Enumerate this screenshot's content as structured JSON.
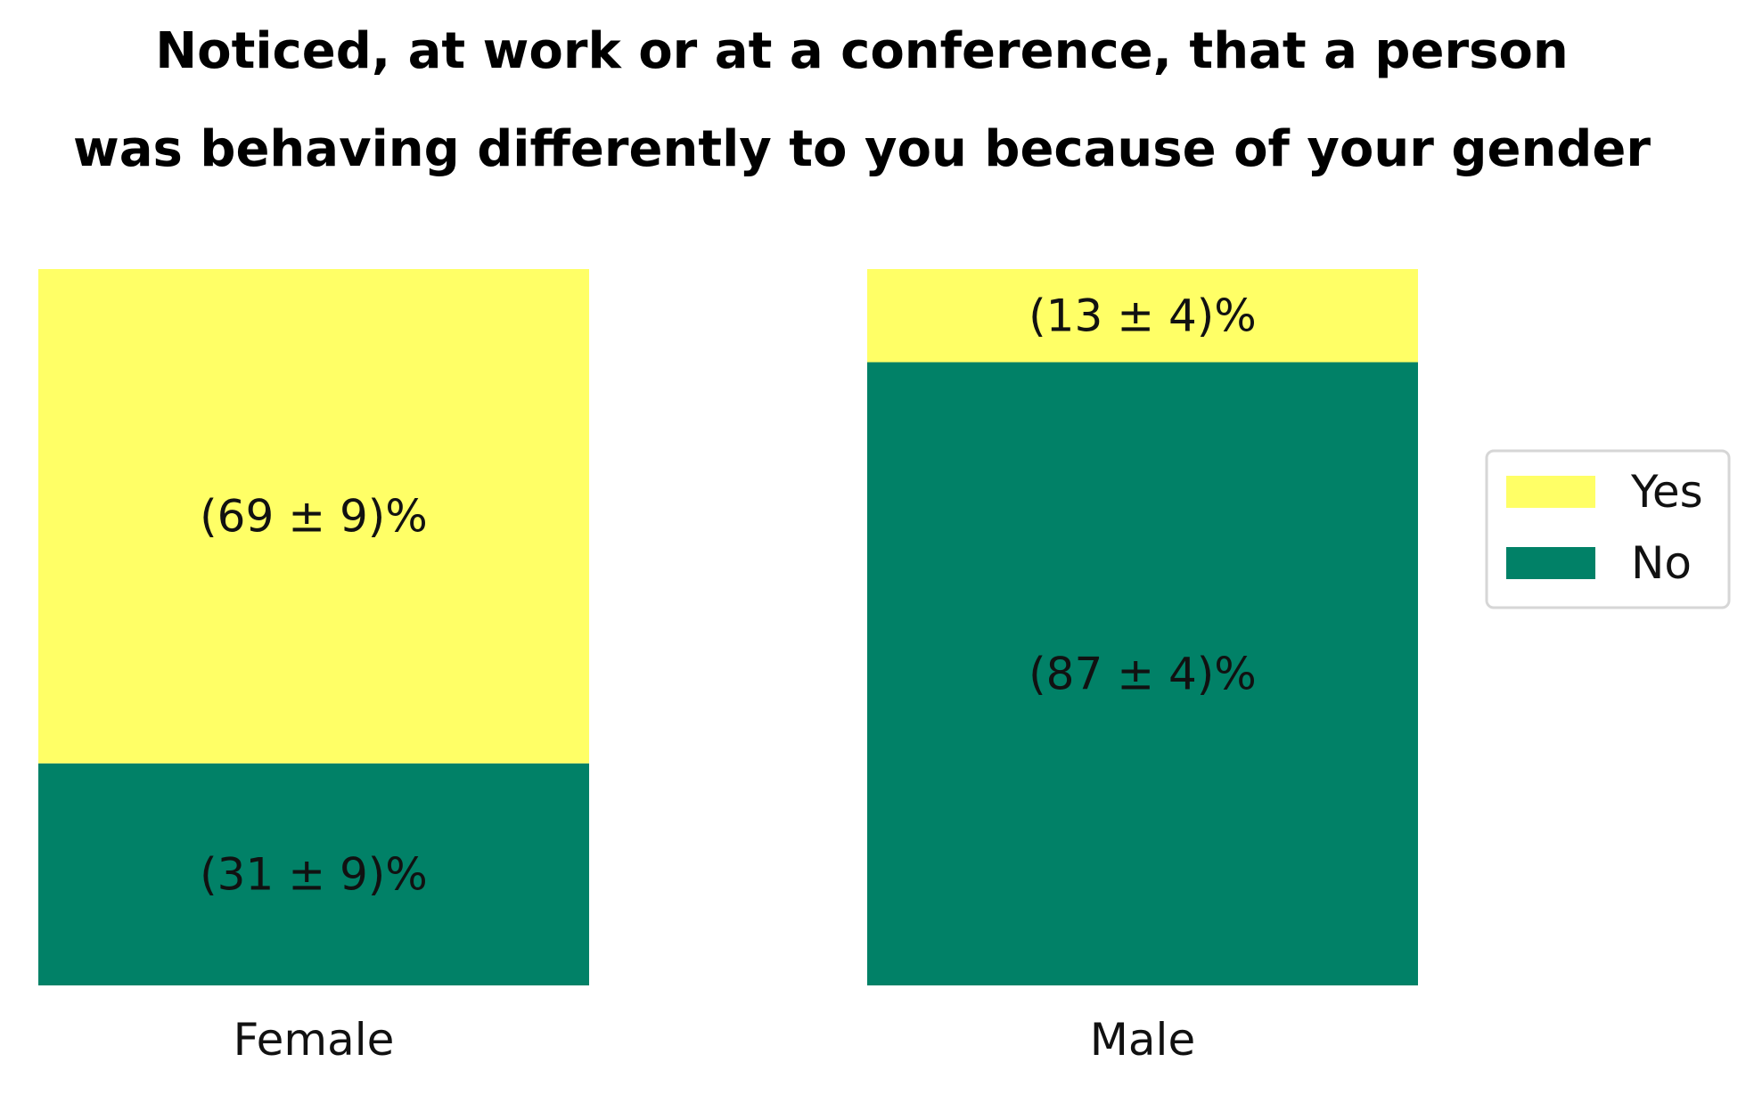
{
  "chart_data": {
    "type": "bar",
    "stacked": true,
    "normalized_percent": true,
    "title_lines": [
      "Noticed, at work or at a conference, that a person",
      "was behaving differently to you because of your gender"
    ],
    "xlabel": "",
    "ylabel": "",
    "ylim": [
      0,
      100
    ],
    "axes_visible": false,
    "grid": false,
    "legend_placement": "center-right",
    "categories": [
      "Female",
      "Male"
    ],
    "series": [
      {
        "name": "No",
        "color": "#018167",
        "values": [
          31,
          87
        ],
        "labels": [
          "(31 ± 9)%",
          "(87 ± 4)%"
        ]
      },
      {
        "name": "Yes",
        "color": "#ffff66",
        "values": [
          69,
          13
        ],
        "labels": [
          "(69 ± 9)%",
          "(13 ± 4)%"
        ]
      }
    ],
    "legend_order": [
      "Yes",
      "No"
    ]
  }
}
